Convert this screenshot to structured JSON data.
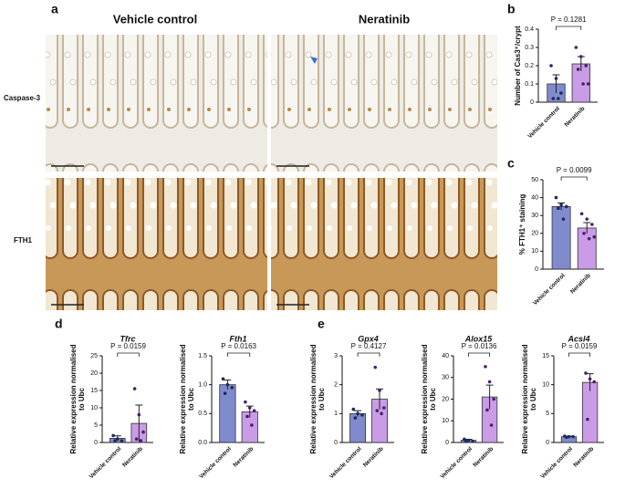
{
  "figure": {
    "panel_labels": [
      "a",
      "b",
      "c",
      "d",
      "e"
    ],
    "columns": [
      "Vehicle control",
      "Neratinib"
    ],
    "rows": [
      "Caspase-3",
      "FTH1"
    ]
  },
  "chart_data": [
    {
      "type": "bar",
      "ylabel": [
        "Number of Cas3⁺/crypt"
      ],
      "categories": [
        "Vehicle control",
        "Neratinib"
      ],
      "values": [
        0.1,
        0.21
      ],
      "errors": [
        0.05,
        0.04
      ],
      "points": [
        [
          0.2,
          0.13,
          0.05,
          0.02,
          0.02
        ],
        [
          0.3,
          0.25,
          0.2,
          0.18,
          0.1,
          0.1
        ]
      ],
      "colors": [
        "#6a77c4",
        "#c08be0"
      ],
      "ylim": [
        0,
        0.4
      ],
      "yticks": [
        0,
        0.1,
        0.2,
        0.3,
        0.4
      ],
      "annotation": "P = 0.1281"
    },
    {
      "type": "bar",
      "ylabel": [
        "% FTH1⁺ staining"
      ],
      "categories": [
        "Vehicle control",
        "Neratinib"
      ],
      "values": [
        35,
        23
      ],
      "errors": [
        2,
        3
      ],
      "points": [
        [
          40,
          36,
          35,
          34,
          28
        ],
        [
          31,
          28,
          25,
          20,
          17,
          18
        ]
      ],
      "colors": [
        "#6a77c4",
        "#c08be0"
      ],
      "ylim": [
        0,
        50
      ],
      "yticks": [
        0,
        10,
        20,
        30,
        40,
        50
      ],
      "annotation": "P = 0.0099"
    },
    {
      "type": "bar",
      "title": "Tfrc",
      "ylabel": [
        "Relative expression normalised",
        "to Ubc"
      ],
      "categories": [
        "Vehicle control",
        "Neratinib"
      ],
      "values": [
        1.2,
        5.5
      ],
      "errors": [
        0.7,
        5.3
      ],
      "points": [
        [
          2,
          1,
          0.5,
          0.5
        ],
        [
          15.5,
          8,
          3,
          1,
          0.5
        ]
      ],
      "colors": [
        "#6a77c4",
        "#c08be0"
      ],
      "ylim": [
        0,
        25
      ],
      "yticks": [
        0,
        5,
        10,
        15,
        20,
        25
      ],
      "annotation": "P = 0.0159"
    },
    {
      "type": "bar",
      "title": "Fth1",
      "ylabel": [
        "Relative expression normalised",
        "to Ubc"
      ],
      "categories": [
        "Vehicle control",
        "Neratinib"
      ],
      "values": [
        1.0,
        0.53
      ],
      "errors": [
        0.08,
        0.1
      ],
      "points": [
        [
          1.1,
          1.0,
          0.95,
          0.85
        ],
        [
          0.7,
          0.6,
          0.55,
          0.45,
          0.3
        ]
      ],
      "colors": [
        "#6a77c4",
        "#c08be0"
      ],
      "ylim": [
        0,
        1.5
      ],
      "yticks": [
        {
          "value": 0,
          "label": "0.0"
        },
        0.5,
        {
          "value": 1,
          "label": "1.0"
        },
        1.5
      ],
      "annotation": "P = 0.0163"
    },
    {
      "type": "bar",
      "title": "Gpx4",
      "ylabel": [
        "Relative expression normalised",
        "to Ubc"
      ],
      "categories": [
        "Vehicle control",
        "Neratinib"
      ],
      "values": [
        1.0,
        1.5
      ],
      "errors": [
        0.1,
        0.35
      ],
      "points": [
        [
          1.15,
          1.0,
          0.95,
          0.85
        ],
        [
          2.6,
          1.8,
          1.2,
          1.1,
          1.0
        ]
      ],
      "colors": [
        "#6a77c4",
        "#c08be0"
      ],
      "ylim": [
        0,
        3
      ],
      "yticks": [
        0,
        1,
        2,
        3
      ],
      "annotation": "P = 0.4127"
    },
    {
      "type": "bar",
      "title": "Alox15",
      "ylabel": [
        "Relative expression normalised",
        "to Ubc"
      ],
      "categories": [
        "Vehicle control",
        "Neratinib"
      ],
      "values": [
        1,
        21
      ],
      "errors": [
        0.5,
        5.5
      ],
      "points": [
        [
          1.5,
          1,
          0.5,
          0.5
        ],
        [
          35,
          28,
          20,
          15,
          8
        ]
      ],
      "colors": [
        "#6a77c4",
        "#c08be0"
      ],
      "ylim": [
        0,
        40
      ],
      "yticks": [
        0,
        10,
        20,
        30,
        40
      ],
      "annotation": "P = 0.0136"
    },
    {
      "type": "bar",
      "title": "Acsl4",
      "ylabel": [
        "Relative expression normalised",
        "to Ubc"
      ],
      "categories": [
        "Vehicle control",
        "Neratinib"
      ],
      "values": [
        1,
        10.4
      ],
      "errors": [
        0.1,
        1.5
      ],
      "points": [
        [
          1.1,
          1,
          1,
          0.9
        ],
        [
          12,
          11,
          10.5,
          4
        ]
      ],
      "colors": [
        "#6a77c4",
        "#c08be0"
      ],
      "ylim": [
        0,
        15
      ],
      "yticks": [
        0,
        5,
        10,
        15
      ],
      "annotation": "P = 0.0159"
    }
  ]
}
